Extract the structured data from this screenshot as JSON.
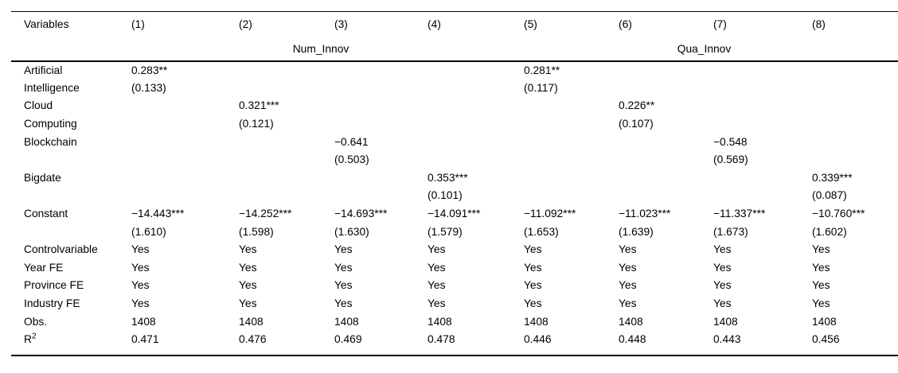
{
  "table": {
    "variables_label": "Variables",
    "columns": [
      "(1)",
      "(2)",
      "(3)",
      "(4)",
      "(5)",
      "(6)",
      "(7)",
      "(8)"
    ],
    "groups": [
      {
        "label": "Num_Innov",
        "span": 4
      },
      {
        "label": "Qua_Innov",
        "span": 4
      }
    ],
    "rows": [
      {
        "label": "Artificial",
        "cells": [
          "0.283**",
          "",
          "",
          "",
          "0.281**",
          "",
          "",
          ""
        ]
      },
      {
        "label": "Intelligence",
        "cells": [
          "(0.133)",
          "",
          "",
          "",
          "(0.117)",
          "",
          "",
          ""
        ]
      },
      {
        "label": "Cloud",
        "cells": [
          "",
          "0.321***",
          "",
          "",
          "",
          "0.226**",
          "",
          ""
        ]
      },
      {
        "label": "Computing",
        "cells": [
          "",
          "(0.121)",
          "",
          "",
          "",
          "(0.107)",
          "",
          ""
        ]
      },
      {
        "label": "Blockchain",
        "cells": [
          "",
          "",
          "−0.641",
          "",
          "",
          "",
          "−0.548",
          ""
        ]
      },
      {
        "label": "",
        "cells": [
          "",
          "",
          "(0.503)",
          "",
          "",
          "",
          "(0.569)",
          ""
        ]
      },
      {
        "label": "Bigdate",
        "cells": [
          "",
          "",
          "",
          "0.353***",
          "",
          "",
          "",
          "0.339***"
        ]
      },
      {
        "label": "",
        "cells": [
          "",
          "",
          "",
          "(0.101)",
          "",
          "",
          "",
          "(0.087)"
        ]
      },
      {
        "label": "Constant",
        "cells": [
          "−14.443***",
          "−14.252***",
          "−14.693***",
          "−14.091***",
          "−11.092***",
          "−11.023***",
          "−11.337***",
          "−10.760***"
        ]
      },
      {
        "label": "",
        "cells": [
          "(1.610)",
          "(1.598)",
          "(1.630)",
          "(1.579)",
          "(1.653)",
          "(1.639)",
          "(1.673)",
          "(1.602)"
        ]
      },
      {
        "label": "Controlvariable",
        "cells": [
          "Yes",
          "Yes",
          "Yes",
          "Yes",
          "Yes",
          "Yes",
          "Yes",
          "Yes"
        ]
      },
      {
        "label": "Year FE",
        "cells": [
          "Yes",
          "Yes",
          "Yes",
          "Yes",
          "Yes",
          "Yes",
          "Yes",
          "Yes"
        ]
      },
      {
        "label": "Province FE",
        "cells": [
          "Yes",
          "Yes",
          "Yes",
          "Yes",
          "Yes",
          "Yes",
          "Yes",
          "Yes"
        ]
      },
      {
        "label": "Industry FE",
        "cells": [
          "Yes",
          "Yes",
          "Yes",
          "Yes",
          "Yes",
          "Yes",
          "Yes",
          "Yes"
        ]
      },
      {
        "label": "Obs.",
        "cells": [
          "1408",
          "1408",
          "1408",
          "1408",
          "1408",
          "1408",
          "1408",
          "1408"
        ]
      },
      {
        "label": "R",
        "sup": "2",
        "cells": [
          "0.471",
          "0.476",
          "0.469",
          "0.478",
          "0.446",
          "0.448",
          "0.443",
          "0.456"
        ]
      }
    ],
    "colors": {
      "text": "#000000",
      "background": "#ffffff",
      "rule": "#000000"
    }
  }
}
